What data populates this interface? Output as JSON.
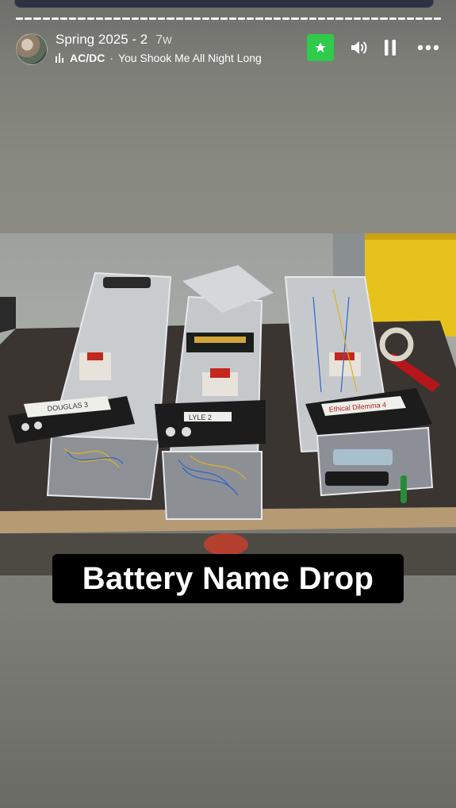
{
  "story": {
    "title": "Spring 2025 - 2",
    "age": "7w",
    "segments": 48
  },
  "music": {
    "artist": "AC/DC",
    "separator": "·",
    "song": "You Shook Me All Night Long"
  },
  "controls": {
    "favorite_icon": "star-icon",
    "volume_icon": "volume-icon",
    "pause_icon": "pause-icon",
    "more_icon": "more-icon"
  },
  "photo": {
    "labels": [
      "DOUGLAS 3",
      "LYLE 2",
      "Ethical Dilemma 4"
    ]
  },
  "caption": "Battery Name Drop",
  "colors": {
    "accent_green": "#2ecc4a",
    "caption_bg": "#000000"
  }
}
